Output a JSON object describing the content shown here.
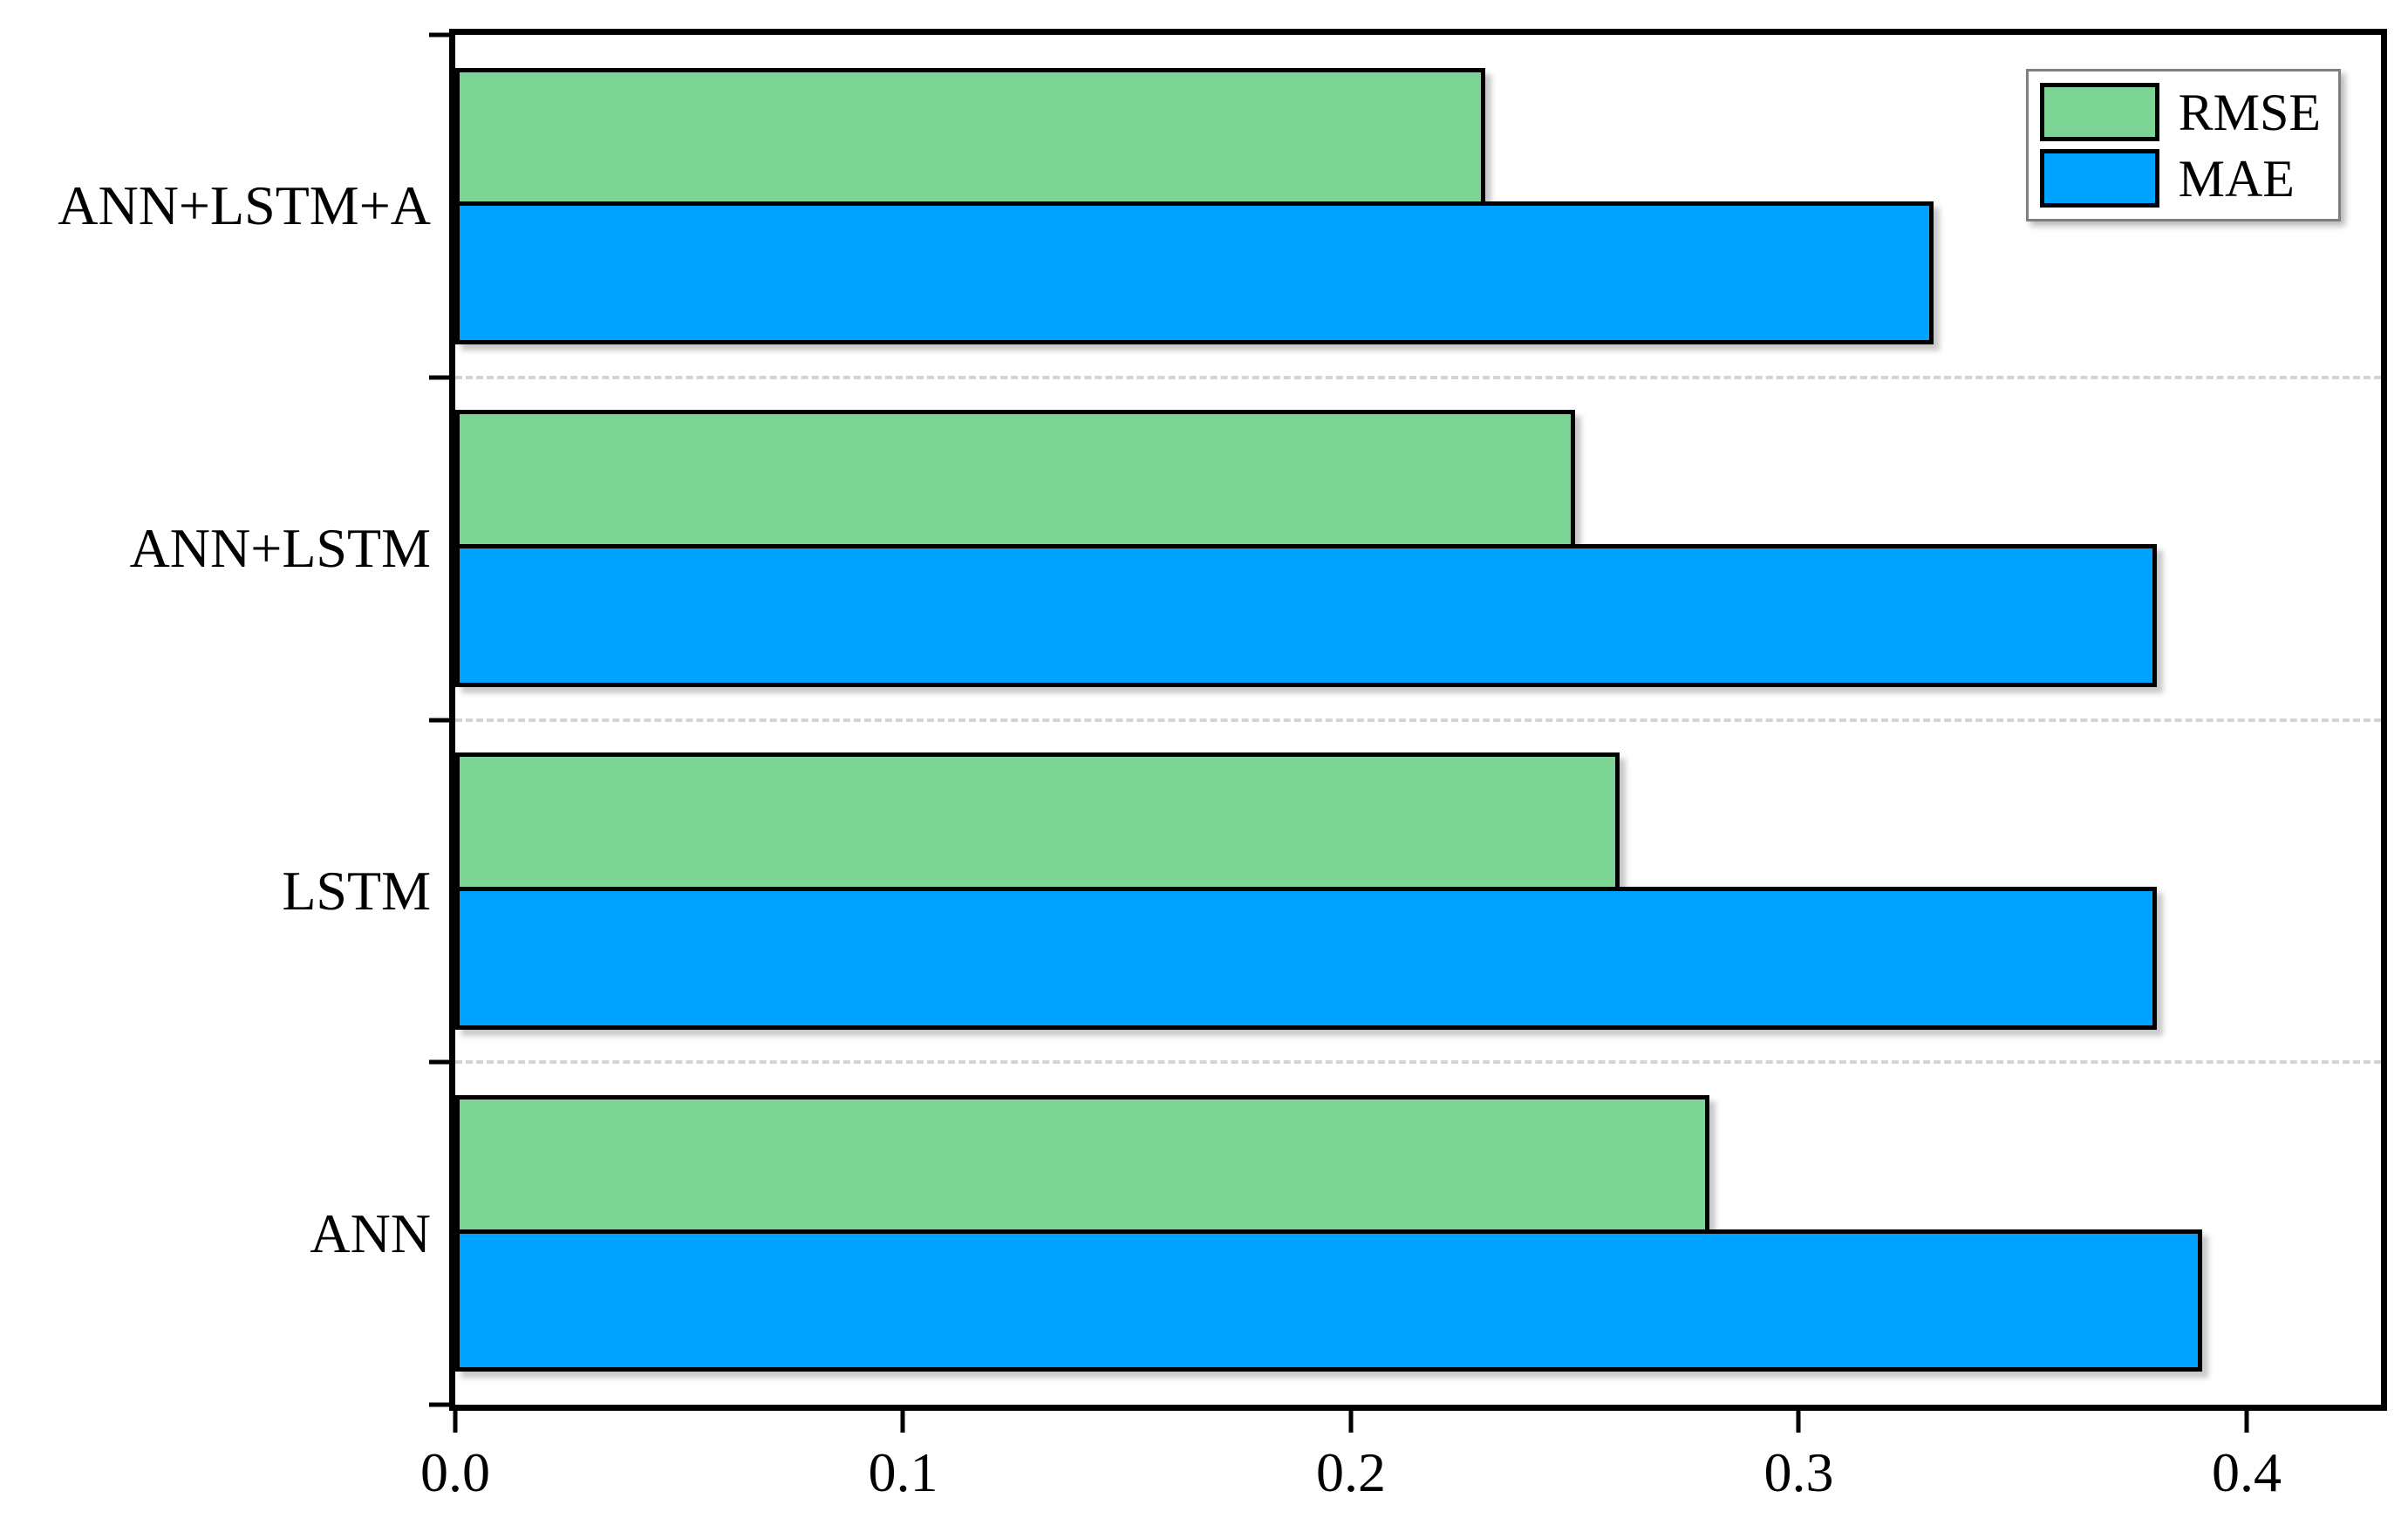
{
  "chart_data": {
    "type": "bar",
    "orientation": "horizontal",
    "title": "",
    "xlabel": "",
    "ylabel": "",
    "categories": [
      "ANN+LSTM+A",
      "ANN+LSTM",
      "LSTM",
      "ANN"
    ],
    "series": [
      {
        "name": "RMSE",
        "color": "#7cd495",
        "values": [
          0.23,
          0.25,
          0.26,
          0.28
        ]
      },
      {
        "name": "MAE",
        "color": "#00a2ff",
        "values": [
          0.33,
          0.38,
          0.38,
          0.39
        ]
      }
    ],
    "x_ticks": [
      0.0,
      0.1,
      0.2,
      0.3,
      0.4
    ],
    "x_tick_labels": [
      "0.0",
      "0.1",
      "0.2",
      "0.3",
      "0.4"
    ],
    "xlim": [
      0,
      0.43
    ],
    "legend_position": "top-right",
    "grid": "dashed horizontal separators between category groups",
    "bar_border_color": "#000000",
    "frame_color": "#000000"
  }
}
